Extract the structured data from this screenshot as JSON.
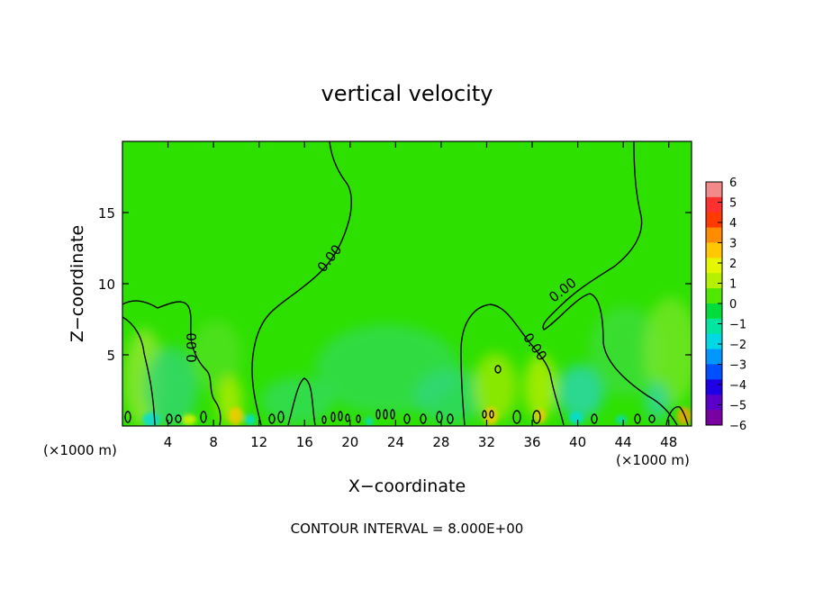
{
  "chart_data": {
    "type": "heatmap",
    "title": "vertical velocity",
    "xlabel": "X−coordinate",
    "ylabel": "Z−coordinate",
    "x_unit_left": "(×1000 m)",
    "x_unit_right": "(×1000 m)",
    "xlim": [
      0,
      50
    ],
    "ylim": [
      0,
      20
    ],
    "x_ticks": [
      4,
      8,
      12,
      16,
      20,
      24,
      28,
      32,
      36,
      40,
      44,
      48
    ],
    "y_ticks": [
      5,
      10,
      15
    ],
    "colorbar": {
      "labels": [
        "6",
        "5",
        "4",
        "3",
        "2",
        "1",
        "0",
        "−1",
        "−2",
        "−3",
        "−4",
        "−5",
        "−6"
      ],
      "colors": [
        "#f28a8a",
        "#ff3030",
        "#ff3a00",
        "#ff8c00",
        "#ffc800",
        "#e6f500",
        "#b4f000",
        "#50e800",
        "#00dc3c",
        "#00e6a0",
        "#00d8e6",
        "#0096ff",
        "#0050ff",
        "#1e00e6",
        "#5a00c8",
        "#7800a0"
      ]
    },
    "contour_label": "0.00",
    "contour_value": 0.0,
    "contour_labels_count": 5,
    "footer": "CONTOUR INTERVAL = 8.000E+00",
    "colors": {
      "background_field": "#2ee000",
      "negative_patch": "#2ed98a",
      "positive_patch": "#c8ee00"
    }
  }
}
